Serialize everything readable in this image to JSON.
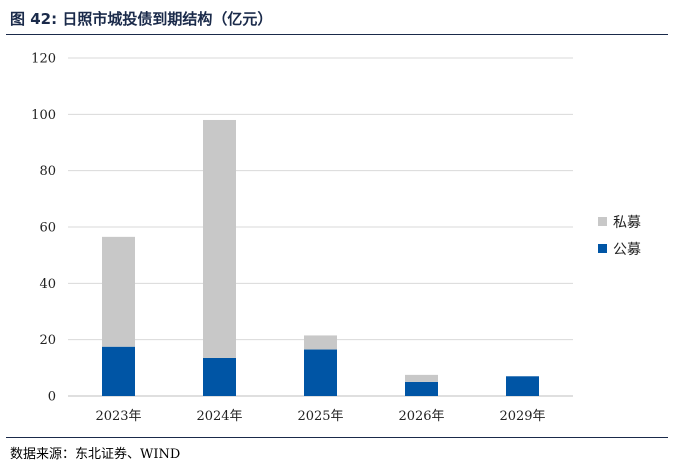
{
  "figure": {
    "title": "图 42:  日照市城投债到期结构（亿元）",
    "source": "数据来源：东北证券、WIND"
  },
  "colors": {
    "public": "#0055a5",
    "private": "#c8c8c8",
    "grid": "#d9d9d9",
    "axis": "#bfbfbf"
  },
  "chart_data": {
    "type": "bar",
    "stacked": true,
    "categories": [
      "2023年",
      "2024年",
      "2025年",
      "2026年",
      "2029年"
    ],
    "series": [
      {
        "name": "公募",
        "values": [
          17.5,
          13.5,
          16.5,
          5.0,
          7.0
        ]
      },
      {
        "name": "私募",
        "values": [
          39.0,
          84.5,
          5.0,
          2.5,
          0
        ]
      }
    ],
    "ylim": [
      0,
      120
    ],
    "yticks": [
      0,
      20,
      40,
      60,
      80,
      100,
      120
    ],
    "grid": true,
    "legend_position": "right",
    "legend_order": [
      "私募",
      "公募"
    ]
  }
}
